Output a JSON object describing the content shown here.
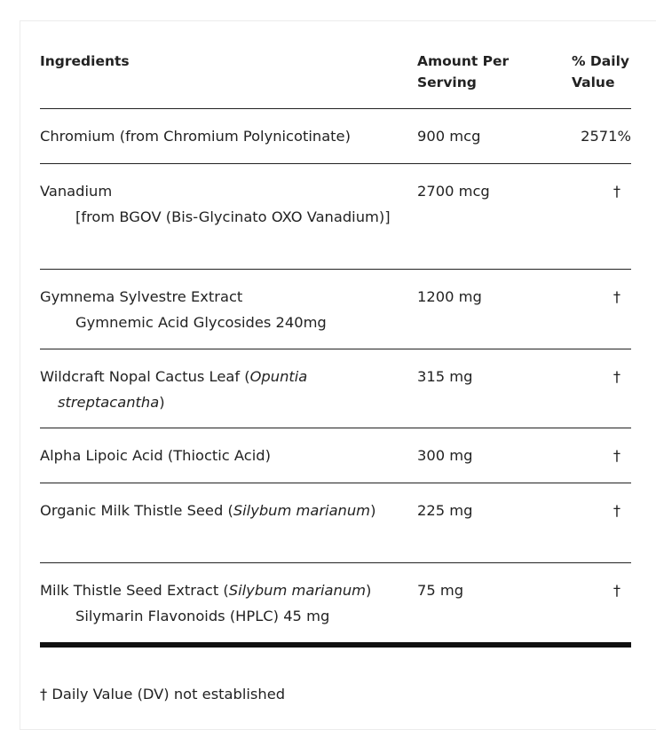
{
  "headers": {
    "ingredients": "Ingredients",
    "amount": "Amount Per Serving",
    "dv": "% Daily Value"
  },
  "rows": [
    {
      "name": "Chromium (from Chromium Polynicotinate)",
      "amount": "900 mcg",
      "dv": "2571%"
    },
    {
      "name": "Vanadium",
      "sub": "[from BGOV (Bis-Glycinato OXO Vanadium)]",
      "amount": "2700 mcg",
      "dv": "†"
    },
    {
      "name": "Gymnema Sylvestre Extract",
      "sub": "Gymnemic Acid Glycosides 240mg",
      "amount": "1200 mg",
      "dv": "†"
    },
    {
      "name": "Wildcraft Nopal Cactus Leaf (",
      "latin": "Opuntia streptacantha",
      "name_end": ")",
      "amount": "315 mg",
      "dv": "†"
    },
    {
      "name": "Alpha Lipoic Acid (Thioctic Acid)",
      "amount": "300 mg",
      "dv": "†"
    },
    {
      "name": "Organic Milk Thistle Seed (",
      "latin": "Silybum marianum",
      "name_end": ")",
      "amount": "225 mg",
      "dv": "†"
    },
    {
      "name": "Milk Thistle Seed Extract (",
      "latin": "Silybum marianum",
      "name_end": ")",
      "sub": "Silymarin Flavonoids (HPLC) 45 mg",
      "amount": "75 mg",
      "dv": "†"
    }
  ],
  "footnote": "† Daily Value (DV) not established"
}
